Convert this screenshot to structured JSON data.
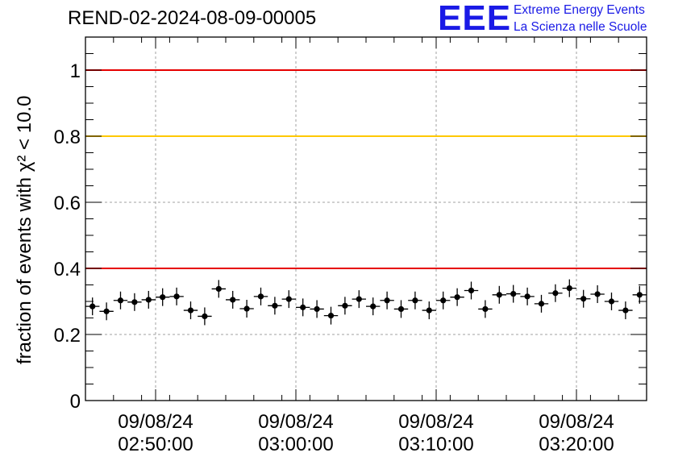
{
  "logo": {
    "mark": "EEE",
    "line1": "Extreme Energy Events",
    "line2": "La Scienza nelle Scuole"
  },
  "chart_data": {
    "type": "scatter",
    "title": "REND-02-2024-08-09-00005",
    "xlabel": "",
    "ylabel": "fraction of events with χ² < 10.0",
    "xlim": [
      "02:45:00",
      "03:25:00"
    ],
    "ylim": [
      0,
      1.1
    ],
    "grid": true,
    "x_tick_labels": [
      {
        "date": "09/08/24",
        "time": "02:50:00"
      },
      {
        "date": "09/08/24",
        "time": "03:00:00"
      },
      {
        "date": "09/08/24",
        "time": "03:10:00"
      },
      {
        "date": "09/08/24",
        "time": "03:20:00"
      }
    ],
    "y_tick_labels": [
      "0",
      "0.2",
      "0.4",
      "0.6",
      "0.8",
      "1"
    ],
    "reference_lines": [
      {
        "y": 1.0,
        "color": "#e60000"
      },
      {
        "y": 0.8,
        "color": "#ffc800"
      },
      {
        "y": 0.4,
        "color": "#e60000"
      }
    ],
    "series": [
      {
        "marker_color": "#000000",
        "x_start": "02:45:00",
        "bin_minutes": 1,
        "values": [
          0.285,
          0.27,
          0.303,
          0.298,
          0.305,
          0.313,
          0.315,
          0.273,
          0.255,
          0.338,
          0.305,
          0.278,
          0.315,
          0.287,
          0.307,
          0.282,
          0.277,
          0.257,
          0.287,
          0.307,
          0.285,
          0.303,
          0.277,
          0.303,
          0.273,
          0.303,
          0.313,
          0.333,
          0.277,
          0.32,
          0.323,
          0.315,
          0.293,
          0.325,
          0.34,
          0.308,
          0.322,
          0.3,
          0.273,
          0.32
        ]
      }
    ]
  }
}
